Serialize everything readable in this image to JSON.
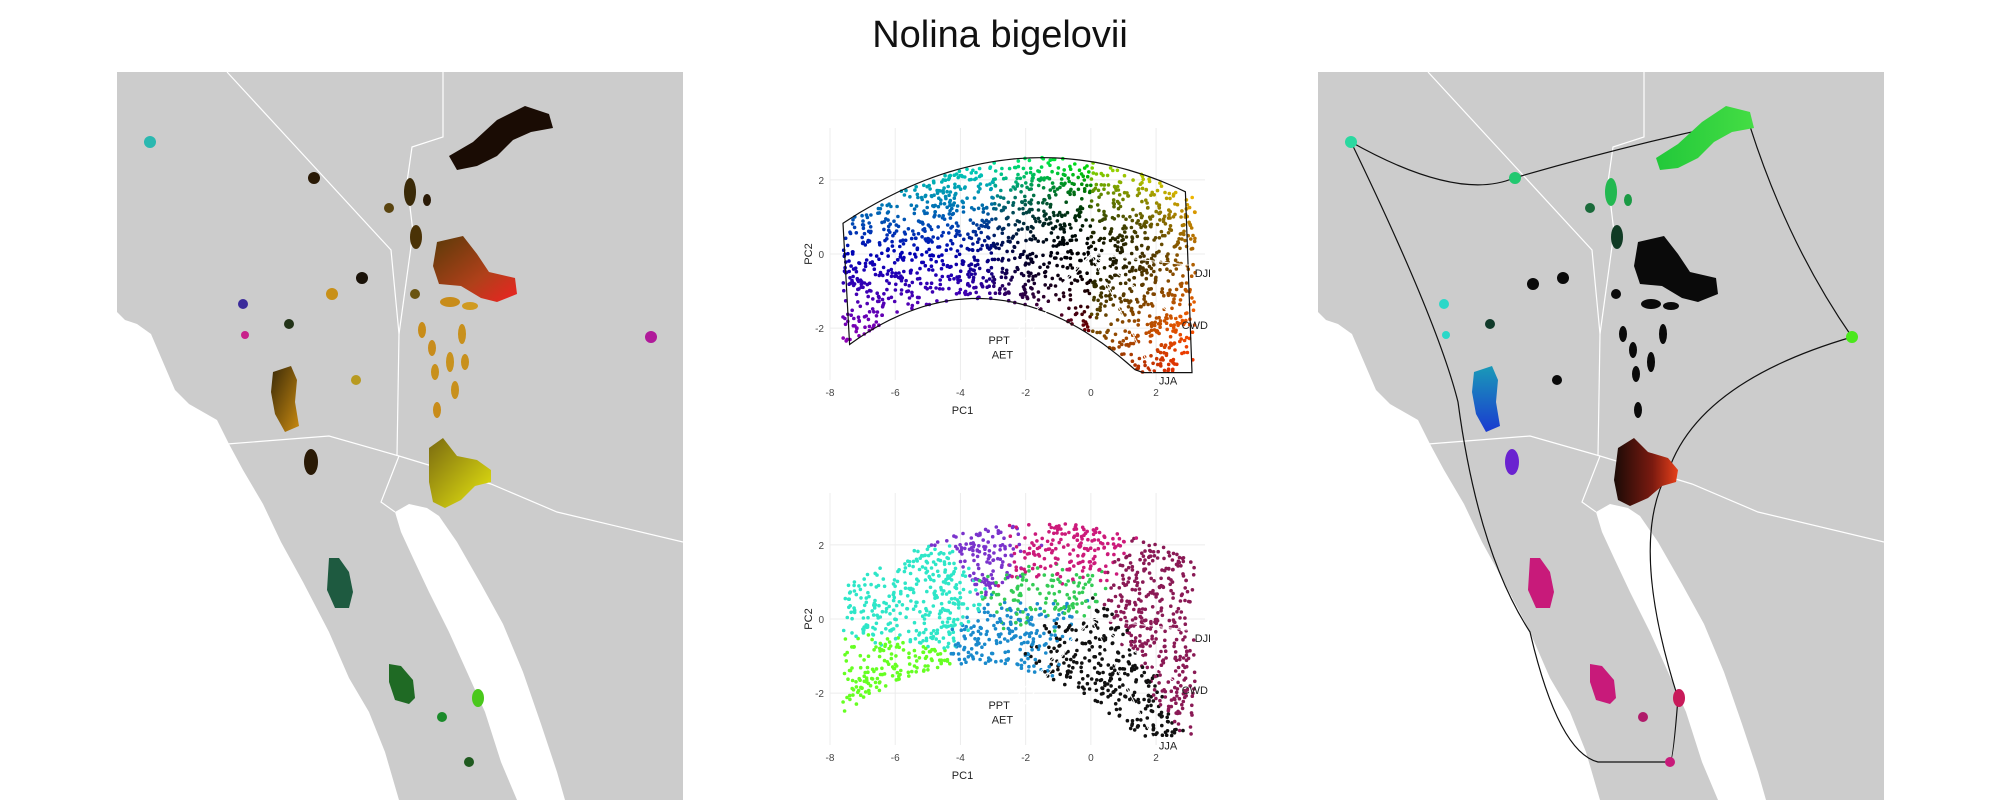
{
  "title": "Nolina bigelovii",
  "colors": {
    "land": "#cccccc",
    "water": "#ffffff",
    "borders": "#ffffff",
    "grid": "#ececec",
    "hull": "#111111"
  },
  "chart_data": [
    {
      "type": "scatter",
      "panel": "pca-top",
      "xlabel": "PC1",
      "ylabel": "PC2",
      "xlim": [
        -8,
        3.5
      ],
      "ylim": [
        -3.4,
        3.4
      ],
      "xticks": [
        -8,
        -6,
        -4,
        -2,
        0,
        2
      ],
      "yticks": [
        -2,
        0,
        2
      ],
      "color_scheme": "rgb-by-pca-position",
      "vectors": [
        {
          "label": "DJF",
          "x": 3.0,
          "y": -0.3
        },
        {
          "label": "CWD",
          "x": 2.6,
          "y": -1.7
        },
        {
          "label": "JJA",
          "x": 1.9,
          "y": -3.2
        },
        {
          "label": "PPT",
          "x": -2.3,
          "y": -2.1
        },
        {
          "label": "AET",
          "x": -2.2,
          "y": -2.5
        }
      ]
    },
    {
      "type": "scatter",
      "panel": "pca-bottom",
      "xlabel": "PC1",
      "ylabel": "PC2",
      "xlim": [
        -8,
        3.5
      ],
      "ylim": [
        -3.4,
        3.4
      ],
      "xticks": [
        -8,
        -6,
        -4,
        -2,
        0,
        2
      ],
      "yticks": [
        -2,
        0,
        2
      ],
      "color_scheme": "cluster-colors",
      "clusters": [
        {
          "color": "#cc1a7a",
          "cx": -1.5,
          "cy": 1.8
        },
        {
          "color": "#7a33cc",
          "cx": -3.0,
          "cy": 2.0
        },
        {
          "color": "#2ee6c8",
          "cx": -5.2,
          "cy": 1.0
        },
        {
          "color": "#33cc55",
          "cx": -1.5,
          "cy": 0.6
        },
        {
          "color": "#1a8acc",
          "cx": -1.8,
          "cy": -0.4
        },
        {
          "color": "#111111",
          "cx": -0.5,
          "cy": -0.8
        },
        {
          "color": "#66ff22",
          "cx": -5.8,
          "cy": -2.3
        },
        {
          "color": "#8a1a55",
          "cx": 2.2,
          "cy": 0.2
        }
      ],
      "vectors": [
        {
          "label": "DJF",
          "x": 3.0,
          "y": -0.3
        },
        {
          "label": "CWD",
          "x": 2.6,
          "y": -1.7
        },
        {
          "label": "JJA",
          "x": 1.9,
          "y": -3.2
        },
        {
          "label": "PPT",
          "x": -2.3,
          "y": -2.1
        },
        {
          "label": "AET",
          "x": -2.2,
          "y": -2.5
        }
      ]
    }
  ]
}
